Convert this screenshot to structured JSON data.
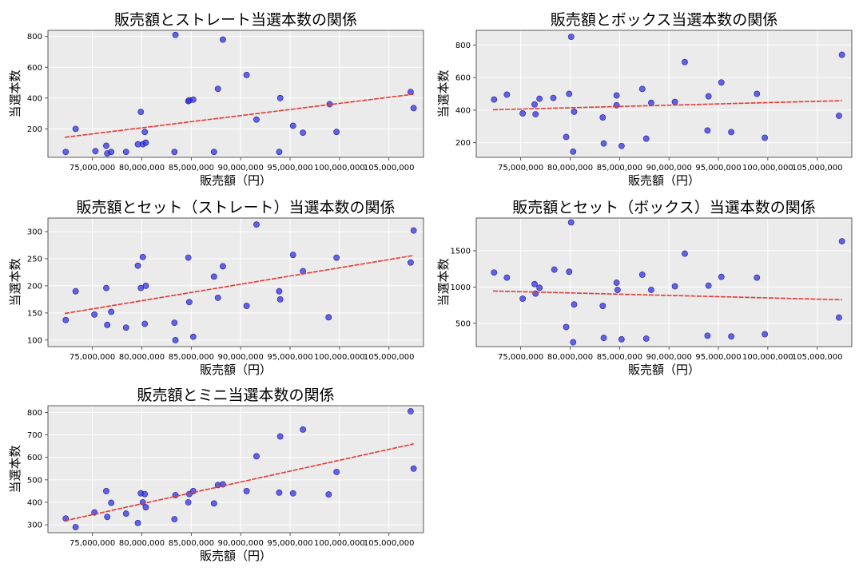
{
  "chart_data": [
    {
      "type": "scatter",
      "title": "販売額とストレート当選本数の関係",
      "xlabel": "販売額（円）",
      "ylabel": "当選本数",
      "xlim": [
        70500000,
        108500000
      ],
      "ylim": [
        15,
        840
      ],
      "xticks": [
        75000000,
        80000000,
        85000000,
        90000000,
        95000000,
        100000000,
        105000000
      ],
      "xtick_labels": [
        "75,000,000",
        "80,000,000",
        "85,000,000",
        "90,000,000",
        "95,000,000",
        "100,000,000",
        "105,000,000"
      ],
      "yticks": [
        200,
        400,
        600,
        800
      ],
      "ytick_labels": [
        "200",
        "400",
        "600",
        "800"
      ],
      "grid": true,
      "point_color": "#3333dd",
      "trend_color": "#e53935",
      "trend": {
        "x": [
          72200000,
          107500000
        ],
        "y": [
          145,
          425
        ]
      },
      "points": [
        [
          72300000,
          50
        ],
        [
          73300000,
          200
        ],
        [
          75300000,
          55
        ],
        [
          76400000,
          90
        ],
        [
          76500000,
          40
        ],
        [
          76900000,
          50
        ],
        [
          78400000,
          50
        ],
        [
          79600000,
          100
        ],
        [
          79900000,
          310
        ],
        [
          80100000,
          100
        ],
        [
          80300000,
          180
        ],
        [
          80400000,
          110
        ],
        [
          83300000,
          50
        ],
        [
          83400000,
          810
        ],
        [
          84700000,
          380
        ],
        [
          84800000,
          385
        ],
        [
          85200000,
          390
        ],
        [
          87300000,
          50
        ],
        [
          87700000,
          460
        ],
        [
          88200000,
          780
        ],
        [
          90600000,
          550
        ],
        [
          91600000,
          260
        ],
        [
          93900000,
          50
        ],
        [
          94000000,
          400
        ],
        [
          95300000,
          220
        ],
        [
          96300000,
          175
        ],
        [
          99000000,
          360
        ],
        [
          99700000,
          180
        ],
        [
          107200000,
          440
        ],
        [
          107500000,
          335
        ]
      ]
    },
    {
      "type": "scatter",
      "title": "販売額とボックス当選本数の関係",
      "xlabel": "販売額（円）",
      "ylabel": "当選本数",
      "xlim": [
        70500000,
        108500000
      ],
      "ylim": [
        110,
        890
      ],
      "xticks": [
        75000000,
        80000000,
        85000000,
        90000000,
        95000000,
        100000000,
        105000000
      ],
      "xtick_labels": [
        "75,000,000",
        "80,000,000",
        "85,000,000",
        "90,000,000",
        "95,000,000",
        "100,000,000",
        "105,000,000"
      ],
      "yticks": [
        200,
        400,
        600,
        800
      ],
      "ytick_labels": [
        "200",
        "400",
        "600",
        "800"
      ],
      "grid": true,
      "point_color": "#3333dd",
      "trend_color": "#e53935",
      "trend": {
        "x": [
          72200000,
          107500000
        ],
        "y": [
          402,
          458
        ]
      },
      "points": [
        [
          72300000,
          465
        ],
        [
          73600000,
          495
        ],
        [
          75200000,
          380
        ],
        [
          76400000,
          435
        ],
        [
          76500000,
          375
        ],
        [
          76900000,
          470
        ],
        [
          78300000,
          475
        ],
        [
          79600000,
          235
        ],
        [
          79900000,
          500
        ],
        [
          80100000,
          850
        ],
        [
          80300000,
          145
        ],
        [
          80400000,
          390
        ],
        [
          83300000,
          355
        ],
        [
          83400000,
          195
        ],
        [
          84700000,
          490
        ],
        [
          84700000,
          430
        ],
        [
          85200000,
          180
        ],
        [
          87300000,
          530
        ],
        [
          87700000,
          225
        ],
        [
          88200000,
          445
        ],
        [
          90600000,
          450
        ],
        [
          91600000,
          695
        ],
        [
          93900000,
          275
        ],
        [
          94000000,
          485
        ],
        [
          95300000,
          570
        ],
        [
          96300000,
          265
        ],
        [
          98900000,
          500
        ],
        [
          99700000,
          230
        ],
        [
          107200000,
          365
        ],
        [
          107500000,
          740
        ]
      ]
    },
    {
      "type": "scatter",
      "title": "販売額とセット（ストレート）当選本数の関係",
      "xlabel": "販売額（円）",
      "ylabel": "当選本数",
      "xlim": [
        70500000,
        108500000
      ],
      "ylim": [
        88,
        325
      ],
      "xticks": [
        75000000,
        80000000,
        85000000,
        90000000,
        95000000,
        100000000,
        105000000
      ],
      "xtick_labels": [
        "75,000,000",
        "80,000,000",
        "85,000,000",
        "90,000,000",
        "95,000,000",
        "100,000,000",
        "105,000,000"
      ],
      "yticks": [
        100,
        150,
        200,
        250,
        300
      ],
      "ytick_labels": [
        "100",
        "150",
        "200",
        "250",
        "300"
      ],
      "grid": true,
      "point_color": "#3333dd",
      "trend_color": "#e53935",
      "trend": {
        "x": [
          72200000,
          107500000
        ],
        "y": [
          149,
          256
        ]
      },
      "points": [
        [
          72300000,
          137
        ],
        [
          73300000,
          190
        ],
        [
          75200000,
          147
        ],
        [
          76400000,
          196
        ],
        [
          76500000,
          128
        ],
        [
          76900000,
          152
        ],
        [
          78400000,
          123
        ],
        [
          79600000,
          237
        ],
        [
          79900000,
          196
        ],
        [
          80100000,
          253
        ],
        [
          80300000,
          130
        ],
        [
          80400000,
          200
        ],
        [
          83300000,
          132
        ],
        [
          83400000,
          100
        ],
        [
          84700000,
          252
        ],
        [
          84800000,
          170
        ],
        [
          85200000,
          106
        ],
        [
          87300000,
          217
        ],
        [
          87700000,
          178
        ],
        [
          88200000,
          236
        ],
        [
          90600000,
          163
        ],
        [
          91600000,
          313
        ],
        [
          93900000,
          190
        ],
        [
          94000000,
          175
        ],
        [
          95300000,
          257
        ],
        [
          96300000,
          227
        ],
        [
          98900000,
          142
        ],
        [
          99700000,
          252
        ],
        [
          107200000,
          243
        ],
        [
          107500000,
          302
        ]
      ]
    },
    {
      "type": "scatter",
      "title": "販売額とセット（ボックス）当選本数の関係",
      "xlabel": "販売額（円）",
      "ylabel": "当選本数",
      "xlim": [
        70500000,
        108500000
      ],
      "ylim": [
        180,
        1950
      ],
      "xticks": [
        75000000,
        80000000,
        85000000,
        90000000,
        95000000,
        100000000,
        105000000
      ],
      "xtick_labels": [
        "75,000,000",
        "80,000,000",
        "85,000,000",
        "90,000,000",
        "95,000,000",
        "100,000,000",
        "105,000,000"
      ],
      "yticks": [
        500,
        1000,
        1500
      ],
      "ytick_labels": [
        "500",
        "1000",
        "1500"
      ],
      "grid": true,
      "point_color": "#3333dd",
      "trend_color": "#e53935",
      "trend": {
        "x": [
          72200000,
          107500000
        ],
        "y": [
          945,
          825
        ]
      },
      "points": [
        [
          72300000,
          1200
        ],
        [
          73600000,
          1130
        ],
        [
          75200000,
          840
        ],
        [
          76400000,
          1040
        ],
        [
          76500000,
          910
        ],
        [
          76900000,
          990
        ],
        [
          78400000,
          1240
        ],
        [
          79600000,
          450
        ],
        [
          79900000,
          1210
        ],
        [
          80100000,
          1890
        ],
        [
          80300000,
          240
        ],
        [
          80400000,
          760
        ],
        [
          83300000,
          740
        ],
        [
          83400000,
          300
        ],
        [
          84700000,
          1060
        ],
        [
          84800000,
          960
        ],
        [
          85200000,
          280
        ],
        [
          87300000,
          1170
        ],
        [
          87700000,
          290
        ],
        [
          88200000,
          960
        ],
        [
          90600000,
          1010
        ],
        [
          91600000,
          1460
        ],
        [
          93900000,
          330
        ],
        [
          94000000,
          1020
        ],
        [
          95300000,
          1140
        ],
        [
          96300000,
          320
        ],
        [
          98900000,
          1130
        ],
        [
          99700000,
          350
        ],
        [
          107200000,
          580
        ],
        [
          107500000,
          1630
        ]
      ]
    },
    {
      "type": "scatter",
      "title": "販売額とミニ当選本数の関係",
      "xlabel": "販売額（円）",
      "ylabel": "当選本数",
      "xlim": [
        70500000,
        108500000
      ],
      "ylim": [
        265,
        830
      ],
      "xticks": [
        75000000,
        80000000,
        85000000,
        90000000,
        95000000,
        100000000,
        105000000
      ],
      "xtick_labels": [
        "75,000,000",
        "80,000,000",
        "85,000,000",
        "90,000,000",
        "95,000,000",
        "100,000,000",
        "105,000,000"
      ],
      "yticks": [
        300,
        400,
        500,
        600,
        700,
        800
      ],
      "ytick_labels": [
        "300",
        "400",
        "500",
        "600",
        "700",
        "800"
      ],
      "grid": true,
      "point_color": "#3333dd",
      "trend_color": "#e53935",
      "trend": {
        "x": [
          72200000,
          107500000
        ],
        "y": [
          318,
          660
        ]
      },
      "points": [
        [
          72300000,
          328
        ],
        [
          73300000,
          290
        ],
        [
          75200000,
          355
        ],
        [
          76400000,
          450
        ],
        [
          76500000,
          335
        ],
        [
          76900000,
          398
        ],
        [
          78400000,
          350
        ],
        [
          79600000,
          308
        ],
        [
          79900000,
          440
        ],
        [
          80100000,
          400
        ],
        [
          80300000,
          437
        ],
        [
          80400000,
          378
        ],
        [
          83300000,
          325
        ],
        [
          83400000,
          432
        ],
        [
          84700000,
          400
        ],
        [
          84800000,
          437
        ],
        [
          85200000,
          450
        ],
        [
          87300000,
          395
        ],
        [
          87700000,
          477
        ],
        [
          88200000,
          480
        ],
        [
          90600000,
          450
        ],
        [
          91600000,
          605
        ],
        [
          93900000,
          443
        ],
        [
          94000000,
          693
        ],
        [
          95300000,
          440
        ],
        [
          96300000,
          724
        ],
        [
          98900000,
          435
        ],
        [
          99700000,
          535
        ],
        [
          107200000,
          805
        ],
        [
          107500000,
          550
        ]
      ]
    }
  ]
}
